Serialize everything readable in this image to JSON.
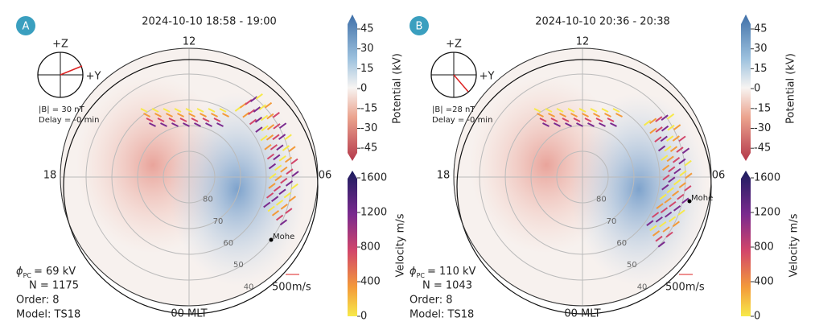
{
  "panels": [
    {
      "label": "A",
      "title": "2024-10-10 18:58 - 19:00",
      "mlt_labels": {
        "top": "12",
        "left": "18",
        "right": "06",
        "bottom": "00 MLT"
      },
      "lat_labels": [
        "80",
        "70",
        "60",
        "50",
        "40"
      ],
      "clock": {
        "z": "+Z",
        "y": "+Y",
        "field": "|B| = 30 nT",
        "delay": "Delay = -0 min"
      },
      "station": "Mohe",
      "stats": {
        "phi": "ϕ",
        "phi_sub": "PC",
        "phi_value": "= 69 kV",
        "n": "N = 1175",
        "order": "Order: 8",
        "model": "Model: TS18"
      },
      "scale": "500m/s",
      "potential_bar": {
        "label": "Potential (kV)",
        "ticks": [
          "45",
          "30",
          "15",
          "0",
          "-15",
          "-30",
          "-45"
        ]
      },
      "velocity_bar": {
        "label": "Velocity m/s",
        "ticks": [
          "1600",
          "1200",
          "800",
          "400",
          "0"
        ]
      }
    },
    {
      "label": "B",
      "title": "2024-10-10 20:36 - 20:38",
      "mlt_labels": {
        "top": "12",
        "left": "18",
        "right": "06",
        "bottom": "00 MLT"
      },
      "lat_labels": [
        "80",
        "70",
        "60",
        "50",
        "40"
      ],
      "clock": {
        "z": "+Z",
        "y": "+Y",
        "field": "|B| =28 nT",
        "delay": "Delay = -0 min"
      },
      "station": "Mohe",
      "stats": {
        "phi": "ϕ",
        "phi_sub": "PC",
        "phi_value": "= 110 kV",
        "n": "N = 1043",
        "order": "Order: 8",
        "model": "Model: TS18"
      },
      "scale": "500m/s",
      "potential_bar": {
        "label": "Potential (kV)",
        "ticks": [
          "45",
          "30",
          "15",
          "0",
          "-15",
          "-30",
          "-45"
        ]
      },
      "velocity_bar": {
        "label": "Velocity m/s",
        "ticks": [
          "1600",
          "1200",
          "800",
          "400",
          "0"
        ]
      }
    }
  ]
}
